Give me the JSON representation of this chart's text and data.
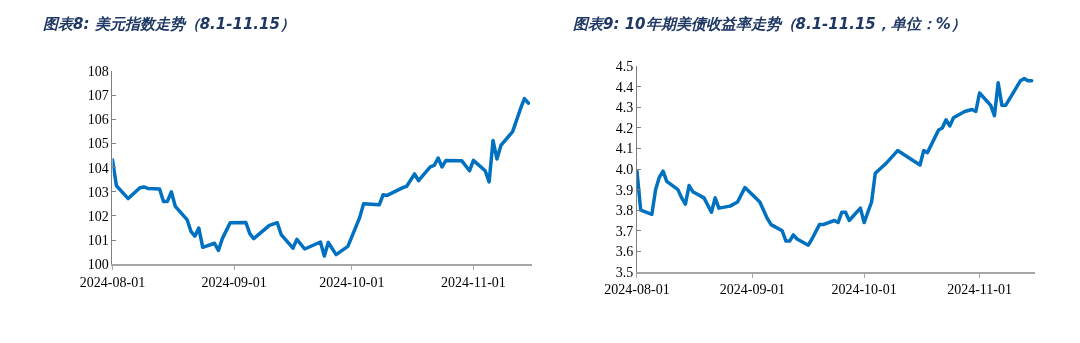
{
  "chart_data": [
    {
      "type": "line",
      "title": "图表8: 美元指数走势（8.1-11.15）",
      "xlim": [
        "2024-08-01",
        "2024-11-16"
      ],
      "xticks": [
        {
          "value": "2024-08-01",
          "label": "2024-08-01"
        },
        {
          "value": "2024-09-01",
          "label": "2024-09-01"
        },
        {
          "value": "2024-10-01",
          "label": "2024-10-01"
        },
        {
          "value": "2024-11-01",
          "label": "2024-11-01"
        }
      ],
      "ylim": [
        100,
        108
      ],
      "yticks": [
        100,
        101,
        102,
        103,
        104,
        105,
        106,
        107,
        108
      ],
      "grid": false,
      "marker": "none",
      "line_style": "solid",
      "x": [
        "2024-08-01",
        "2024-08-02",
        "2024-08-05",
        "2024-08-08",
        "2024-08-09",
        "2024-08-10",
        "2024-08-13",
        "2024-08-14",
        "2024-08-15",
        "2024-08-16",
        "2024-08-17",
        "2024-08-20",
        "2024-08-21",
        "2024-08-22",
        "2024-08-23",
        "2024-08-24",
        "2024-08-27",
        "2024-08-28",
        "2024-08-29",
        "2024-08-31",
        "2024-09-04",
        "2024-09-05",
        "2024-09-06",
        "2024-09-10",
        "2024-09-12",
        "2024-09-13",
        "2024-09-16",
        "2024-09-17",
        "2024-09-19",
        "2024-09-23",
        "2024-09-24",
        "2024-09-25",
        "2024-09-27",
        "2024-09-30",
        "2024-10-03",
        "2024-10-04",
        "2024-10-08",
        "2024-10-09",
        "2024-10-10",
        "2024-10-14",
        "2024-10-15",
        "2024-10-17",
        "2024-10-18",
        "2024-10-21",
        "2024-10-22",
        "2024-10-23",
        "2024-10-24",
        "2024-10-25",
        "2024-10-29",
        "2024-10-31",
        "2024-11-01",
        "2024-11-04",
        "2024-11-05",
        "2024-11-06",
        "2024-11-07",
        "2024-11-08",
        "2024-11-11",
        "2024-11-13",
        "2024-11-14",
        "2024-11-15"
      ],
      "series": [
        {
          "color": "#0070c0",
          "values": [
            104.33,
            103.25,
            102.72,
            103.17,
            103.2,
            103.14,
            103.12,
            102.6,
            102.6,
            103.0,
            102.4,
            101.85,
            101.36,
            101.16,
            101.5,
            100.7,
            100.87,
            100.57,
            101.06,
            101.72,
            101.73,
            101.27,
            101.06,
            101.61,
            101.72,
            101.23,
            100.67,
            101.03,
            100.63,
            100.92,
            100.34,
            100.9,
            100.4,
            100.74,
            101.93,
            102.5,
            102.46,
            102.88,
            102.85,
            103.17,
            103.23,
            103.74,
            103.46,
            104.03,
            104.09,
            104.4,
            104.03,
            104.3,
            104.29,
            103.87,
            104.3,
            103.87,
            103.41,
            105.12,
            104.36,
            104.92,
            105.49,
            106.44,
            106.86,
            106.67
          ]
        }
      ]
    },
    {
      "type": "line",
      "title": "图表9: 10年期美债收益率走势（8.1-11.15，单位：%）",
      "xlim": [
        "2024-08-01",
        "2024-11-16"
      ],
      "xticks": [
        {
          "value": "2024-08-01",
          "label": "2024-08-01"
        },
        {
          "value": "2024-09-01",
          "label": "2024-09-01"
        },
        {
          "value": "2024-10-01",
          "label": "2024-10-01"
        },
        {
          "value": "2024-11-01",
          "label": "2024-11-01"
        }
      ],
      "ylim": [
        3.5,
        4.5
      ],
      "yticks": [
        {
          "value": 3.5,
          "label": "3.5"
        },
        {
          "value": 3.6,
          "label": "3.6"
        },
        {
          "value": 3.7,
          "label": "3.7"
        },
        {
          "value": 3.8,
          "label": "3.8"
        },
        {
          "value": 3.9,
          "label": "3.9"
        },
        {
          "value": 4.0,
          "label": "4.0"
        },
        {
          "value": 4.1,
          "label": "4.1"
        },
        {
          "value": 4.2,
          "label": "4.2"
        },
        {
          "value": 4.3,
          "label": "4.3"
        },
        {
          "value": 4.4,
          "label": "4.4"
        },
        {
          "value": 4.5,
          "label": "4.5"
        }
      ],
      "grid": false,
      "marker": "none",
      "line_style": "solid",
      "x": [
        "2024-08-01",
        "2024-08-02",
        "2024-08-05",
        "2024-08-06",
        "2024-08-07",
        "2024-08-08",
        "2024-08-09",
        "2024-08-12",
        "2024-08-13",
        "2024-08-14",
        "2024-08-15",
        "2024-08-16",
        "2024-08-19",
        "2024-08-21",
        "2024-08-22",
        "2024-08-23",
        "2024-08-26",
        "2024-08-28",
        "2024-08-30",
        "2024-09-03",
        "2024-09-05",
        "2024-09-06",
        "2024-09-09",
        "2024-09-10",
        "2024-09-11",
        "2024-09-12",
        "2024-09-13",
        "2024-09-16",
        "2024-09-17",
        "2024-09-19",
        "2024-09-20",
        "2024-09-23",
        "2024-09-24",
        "2024-09-25",
        "2024-09-26",
        "2024-09-27",
        "2024-09-30",
        "2024-10-01",
        "2024-10-03",
        "2024-10-04",
        "2024-10-07",
        "2024-10-08",
        "2024-10-10",
        "2024-10-16",
        "2024-10-17",
        "2024-10-18",
        "2024-10-21",
        "2024-10-22",
        "2024-10-23",
        "2024-10-24",
        "2024-10-25",
        "2024-10-28",
        "2024-10-30",
        "2024-10-31",
        "2024-11-01",
        "2024-11-04",
        "2024-11-05",
        "2024-11-06",
        "2024-11-07",
        "2024-11-08",
        "2024-11-12",
        "2024-11-13",
        "2024-11-14",
        "2024-11-15"
      ],
      "series": [
        {
          "color": "#0070c0",
          "values": [
            3.99,
            3.8,
            3.78,
            3.9,
            3.96,
            3.99,
            3.94,
            3.9,
            3.86,
            3.83,
            3.92,
            3.89,
            3.86,
            3.79,
            3.86,
            3.81,
            3.82,
            3.84,
            3.91,
            3.84,
            3.76,
            3.73,
            3.7,
            3.65,
            3.65,
            3.68,
            3.66,
            3.63,
            3.66,
            3.73,
            3.73,
            3.75,
            3.74,
            3.79,
            3.79,
            3.75,
            3.81,
            3.74,
            3.84,
            3.98,
            4.03,
            4.05,
            4.09,
            4.02,
            4.09,
            4.08,
            4.19,
            4.2,
            4.24,
            4.21,
            4.25,
            4.28,
            4.29,
            4.28,
            4.37,
            4.31,
            4.26,
            4.42,
            4.31,
            4.31,
            4.43,
            4.44,
            4.43,
            4.43
          ]
        }
      ]
    }
  ]
}
